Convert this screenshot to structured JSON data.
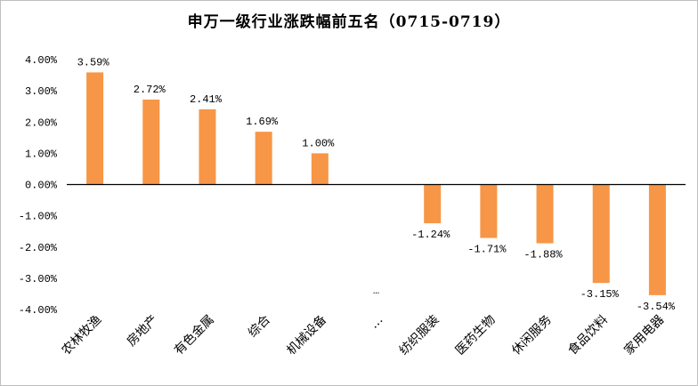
{
  "chart_data": {
    "type": "bar",
    "title": "申万一级行业涨跌幅前五名（0715-0719）",
    "categories": [
      "农林牧渔",
      "房地产",
      "有色金属",
      "综合",
      "机械设备",
      "…",
      "纺织服装",
      "医药生物",
      "休闲服务",
      "食品饮料",
      "家用电器"
    ],
    "values": [
      3.59,
      2.72,
      2.41,
      1.69,
      1.0,
      null,
      -1.24,
      -1.71,
      -1.88,
      -3.15,
      -3.54
    ],
    "data_labels": [
      "3.59%",
      "2.72%",
      "2.41%",
      "1.69%",
      "1.00%",
      "…",
      "-1.24%",
      "-1.71%",
      "-1.88%",
      "-3.15%",
      "-3.54%"
    ],
    "unit": "%",
    "ylim": [
      -4,
      4
    ],
    "yticks": [
      4,
      3,
      2,
      1,
      0,
      -1,
      -2,
      -3,
      -4
    ],
    "ytick_labels": [
      "4.00%",
      "3.00%",
      "2.00%",
      "1.00%",
      "0.00%",
      "-1.00%",
      "-2.00%",
      "-3.00%",
      "-4.00%"
    ],
    "bar_color": "#F79646",
    "grid": false,
    "legend": "none",
    "xlabel": "",
    "ylabel": ""
  }
}
